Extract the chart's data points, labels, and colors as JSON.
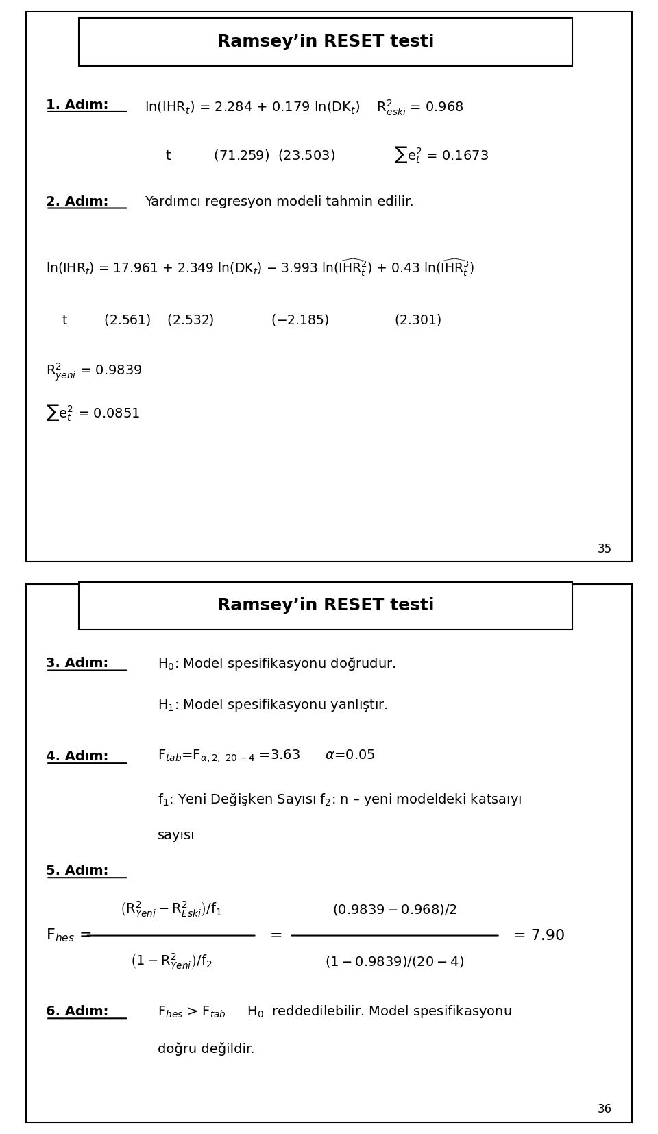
{
  "bg_color": "#ffffff",
  "text_color": "#000000",
  "page_width": 9.6,
  "page_height": 16.54,
  "slide1_title": "Ramsey’in RESET testi",
  "slide2_title": "Ramsey’in RESET testi",
  "page35": "35",
  "page36": "36",
  "step1_label": "1. Adım:",
  "step2_label": "2. Adım:",
  "step3_label": "3. Adım:",
  "step4_label": "4. Adım:",
  "step5_label": "5. Adım:",
  "step6_label": "6. Adım:",
  "eq1_line1": "ln(IHR$_t$) = 2.284 + 0.179 ln(DK$_t$)    R$^2_{eski}$ = 0.968",
  "eq1_line2": "     t          (71.259)  (23.503)              $\\sum$e$^2_t$ = 0.1673",
  "step2_text": "Yardımcı regresyon modeli tahmin edilir.",
  "eq2_line1": "ln(IHR$_t$) = 17.961 + 2.349 ln(DK$_t$) $-$ 3.993 ln($\\widehat{\\rm IHR}^2_t$) + 0.43 ln($\\widehat{\\rm IHR}^3_t$)",
  "eq2_line2": "    t         (2.561)    (2.532)              ($-$2.185)                (2.301)",
  "ryeni": "R$^2_{yeni}$ = 0.9839",
  "sumet": "$\\sum$e$^2_t$ = 0.0851",
  "h0": "H$_0$: Model spesifikasyonu doğrudur.",
  "h1": "H$_1$: Model spesifikasyonu yanlıştır.",
  "step4_eq": "F$_{tab}$=F$_{\\alpha,2,\\ 20-4}$ =3.63      $\\alpha$=0.05",
  "step4_note1": "f$_1$: Yeni Değişken Sayısı f$_2$: n – yeni modeldeki katsaıyı",
  "step4_note2": "sayısı",
  "fhes_label": "F$_{hes}$ =",
  "frac1_num": "$\\left({\\rm R}^2_{Yeni} - {\\rm R}^2_{Eski}\\right)/ {\\rm f}_1$",
  "frac1_den": "$\\left(1 - {\\rm R}^2_{Yeni}\\right)/ {\\rm f}_2$",
  "frac2_num": "$\\left(0.9839 - 0.968\\right)/ 2$",
  "frac2_den": "$\\left(1 - 0.9839\\right)/(20 - 4)$",
  "fhes_result": "= 7.90",
  "step6_line1": "F$_{hes}$ > F$_{tab}$     H$_0$  reddedilebilir. Model spesifikasyonu",
  "step6_line2": "doğru değildir."
}
